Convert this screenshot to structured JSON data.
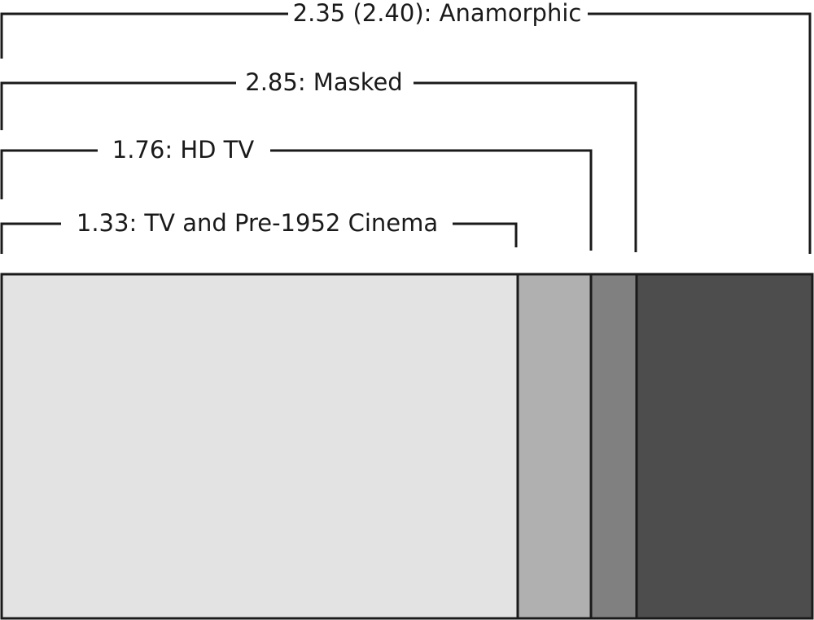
{
  "labels": [
    "2.35 (2.40): Anamorphic",
    "2.85: Masked",
    "1.76: HD TV",
    "1.33: TV and Pre-1952 Cinema"
  ]
}
